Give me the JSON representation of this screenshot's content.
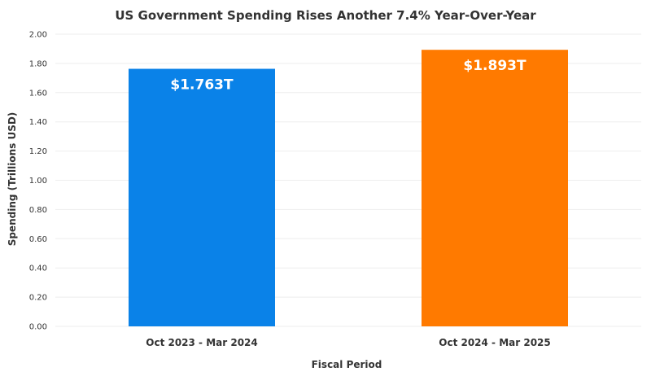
{
  "chart_data": {
    "type": "bar",
    "title": "US Government Spending Rises Another 7.4% Year-Over-Year",
    "xlabel": "Fiscal Period",
    "ylabel": "Spending (Trillions USD)",
    "ylim": [
      0,
      2
    ],
    "yticks": [
      "0.00",
      "0.20",
      "0.40",
      "0.60",
      "0.80",
      "1.00",
      "1.20",
      "1.40",
      "1.60",
      "1.80",
      "2.00"
    ],
    "grid": true,
    "categories": [
      "Oct 2023 - Mar 2024",
      "Oct 2024 - Mar 2025"
    ],
    "values": [
      1.763,
      1.893
    ],
    "data_labels": [
      "$1.763T",
      "$1.893T"
    ],
    "colors": [
      "#0a82e8",
      "#ff7a00"
    ]
  }
}
